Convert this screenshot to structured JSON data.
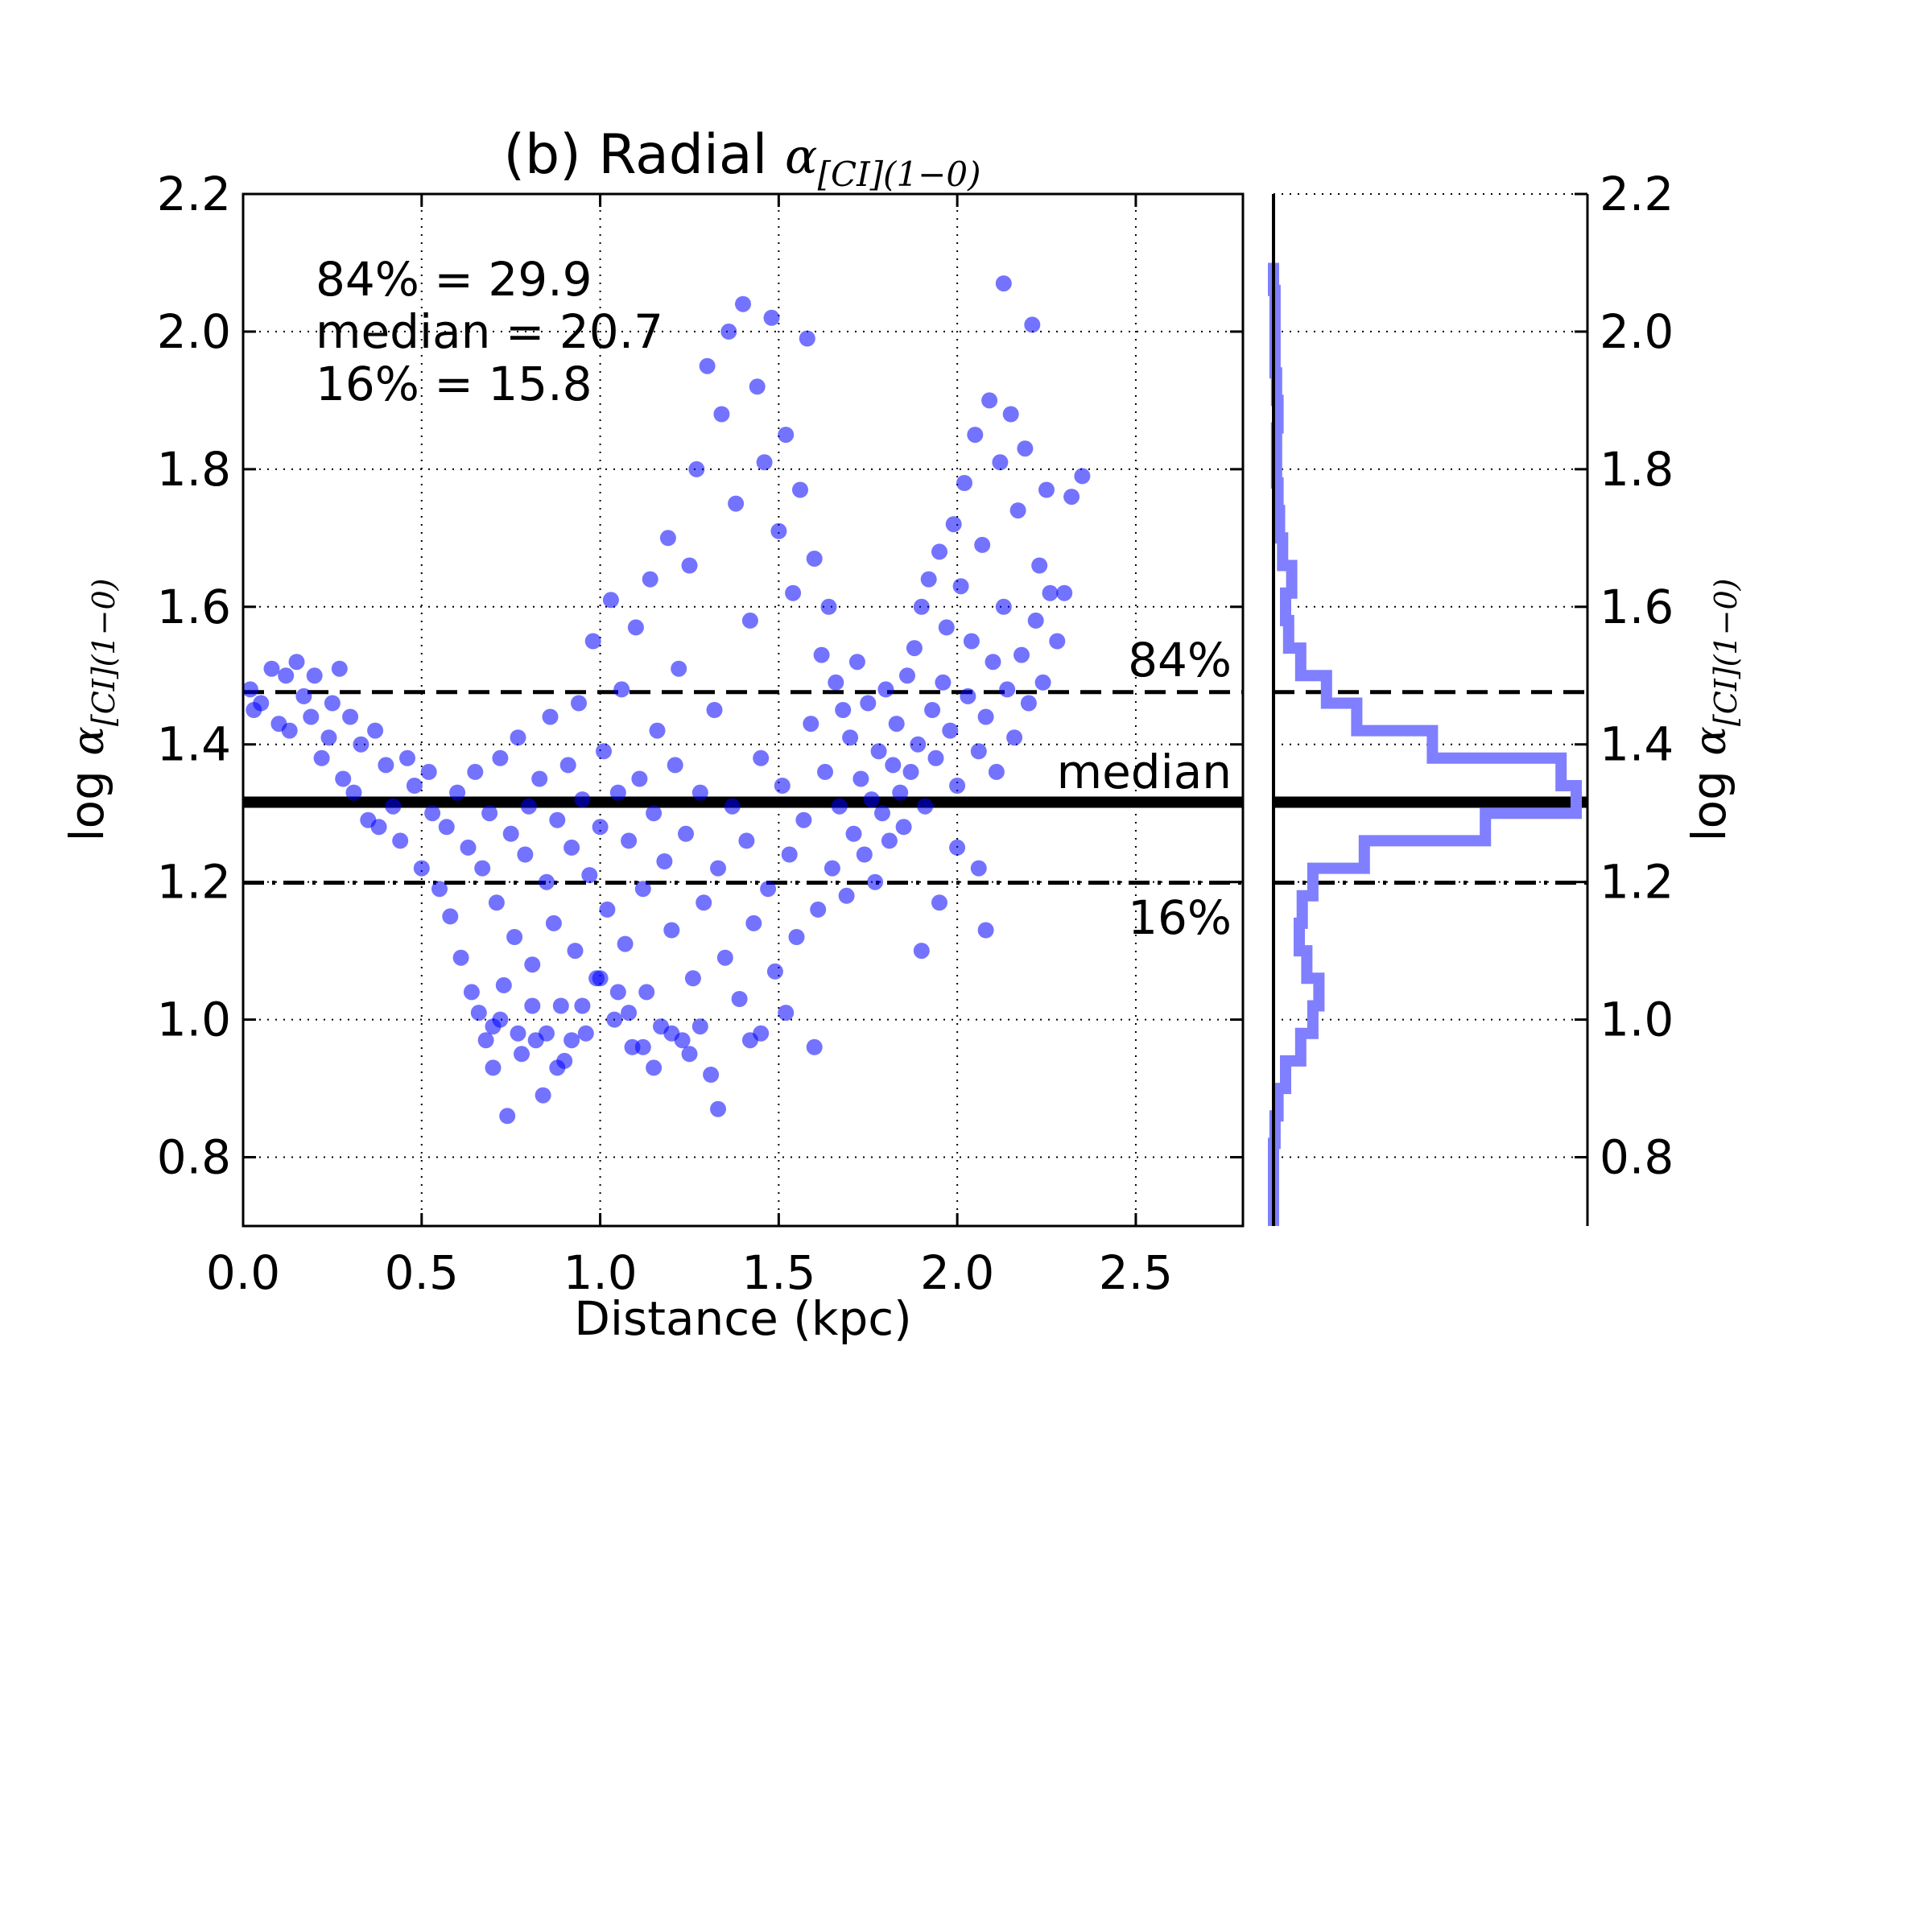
{
  "chart_data": {
    "type": "scatter",
    "title": {
      "prefix": "(b) Radial ",
      "symbol": "α",
      "subscript": "[CI](1−0)"
    },
    "xlabel": "Distance (kpc)",
    "ylabel": {
      "prefix": "log ",
      "symbol": "α",
      "subscript": "[CI](1−0)"
    },
    "xlim": [
      0.0,
      2.8
    ],
    "ylim": [
      0.7,
      2.2
    ],
    "xticks": [
      "0.0",
      "0.5",
      "1.0",
      "1.5",
      "2.0",
      "2.5"
    ],
    "yticks": [
      "0.8",
      "1.0",
      "1.2",
      "1.4",
      "1.6",
      "1.8",
      "2.0",
      "2.2"
    ],
    "grid": true,
    "marker_color": "#0000ff",
    "marker_alpha": 0.55,
    "histogram_color": "#7f7fff",
    "stats_text": [
      "84% = 29.9",
      "median = 20.7",
      "16% = 15.8"
    ],
    "reference_lines": [
      {
        "name": "84%",
        "value": 1.476,
        "style": "dashed"
      },
      {
        "name": "median",
        "value": 1.316,
        "style": "solid"
      },
      {
        "name": "16%",
        "value": 1.199,
        "style": "dashdot"
      }
    ],
    "points": [
      [
        0.02,
        1.48
      ],
      [
        0.03,
        1.45
      ],
      [
        0.05,
        1.46
      ],
      [
        0.08,
        1.51
      ],
      [
        0.1,
        1.43
      ],
      [
        0.12,
        1.5
      ],
      [
        0.13,
        1.42
      ],
      [
        0.15,
        1.52
      ],
      [
        0.17,
        1.47
      ],
      [
        0.19,
        1.44
      ],
      [
        0.2,
        1.5
      ],
      [
        0.22,
        1.38
      ],
      [
        0.24,
        1.41
      ],
      [
        0.25,
        1.46
      ],
      [
        0.27,
        1.51
      ],
      [
        0.28,
        1.35
      ],
      [
        0.3,
        1.44
      ],
      [
        0.31,
        1.33
      ],
      [
        0.33,
        1.4
      ],
      [
        0.35,
        1.29
      ],
      [
        0.37,
        1.42
      ],
      [
        0.38,
        1.28
      ],
      [
        0.4,
        1.37
      ],
      [
        0.42,
        1.31
      ],
      [
        0.44,
        1.26
      ],
      [
        0.46,
        1.38
      ],
      [
        0.48,
        1.34
      ],
      [
        0.5,
        1.22
      ],
      [
        0.52,
        1.36
      ],
      [
        0.53,
        1.3
      ],
      [
        0.55,
        1.19
      ],
      [
        0.57,
        1.28
      ],
      [
        0.58,
        1.15
      ],
      [
        0.6,
        1.33
      ],
      [
        0.61,
        1.09
      ],
      [
        0.63,
        1.25
      ],
      [
        0.64,
        1.04
      ],
      [
        0.65,
        1.36
      ],
      [
        0.66,
        1.01
      ],
      [
        0.67,
        1.22
      ],
      [
        0.68,
        0.97
      ],
      [
        0.69,
        1.3
      ],
      [
        0.7,
        0.93
      ],
      [
        0.71,
        1.17
      ],
      [
        0.72,
        1.38
      ],
      [
        0.73,
        1.05
      ],
      [
        0.74,
        0.86
      ],
      [
        0.75,
        1.27
      ],
      [
        0.76,
        1.12
      ],
      [
        0.77,
        1.41
      ],
      [
        0.78,
        0.95
      ],
      [
        0.79,
        1.24
      ],
      [
        0.8,
        1.31
      ],
      [
        0.81,
        1.08
      ],
      [
        0.82,
        0.97
      ],
      [
        0.83,
        1.35
      ],
      [
        0.84,
        0.89
      ],
      [
        0.85,
        1.2
      ],
      [
        0.86,
        1.44
      ],
      [
        0.87,
        1.14
      ],
      [
        0.88,
        1.29
      ],
      [
        0.89,
        1.02
      ],
      [
        0.9,
        0.94
      ],
      [
        0.91,
        1.37
      ],
      [
        0.92,
        1.25
      ],
      [
        0.93,
        1.1
      ],
      [
        0.94,
        1.46
      ],
      [
        0.95,
        1.32
      ],
      [
        0.96,
        0.98
      ],
      [
        0.97,
        1.21
      ],
      [
        0.98,
        1.55
      ],
      [
        0.99,
        1.06
      ],
      [
        1.0,
        1.28
      ],
      [
        1.01,
        1.39
      ],
      [
        1.02,
        1.16
      ],
      [
        1.03,
        1.61
      ],
      [
        1.04,
        1.0
      ],
      [
        1.05,
        1.33
      ],
      [
        1.06,
        1.48
      ],
      [
        1.07,
        1.11
      ],
      [
        1.08,
        1.26
      ],
      [
        1.09,
        0.96
      ],
      [
        1.1,
        1.57
      ],
      [
        1.11,
        1.35
      ],
      [
        1.12,
        1.19
      ],
      [
        1.13,
        1.04
      ],
      [
        1.14,
        1.64
      ],
      [
        1.15,
        1.3
      ],
      [
        1.16,
        1.42
      ],
      [
        1.17,
        0.99
      ],
      [
        1.18,
        1.23
      ],
      [
        1.19,
        1.7
      ],
      [
        1.2,
        1.13
      ],
      [
        1.21,
        1.37
      ],
      [
        1.22,
        1.51
      ],
      [
        1.23,
        0.97
      ],
      [
        1.24,
        1.27
      ],
      [
        1.25,
        1.66
      ],
      [
        1.26,
        1.06
      ],
      [
        1.27,
        1.8
      ],
      [
        1.28,
        1.33
      ],
      [
        1.29,
        1.17
      ],
      [
        1.3,
        1.95
      ],
      [
        1.31,
        0.92
      ],
      [
        1.32,
        1.45
      ],
      [
        1.33,
        1.22
      ],
      [
        1.34,
        1.88
      ],
      [
        1.35,
        1.09
      ],
      [
        1.36,
        2.0
      ],
      [
        1.37,
        1.31
      ],
      [
        1.38,
        1.75
      ],
      [
        1.39,
        1.03
      ],
      [
        1.4,
        2.04
      ],
      [
        1.41,
        1.26
      ],
      [
        1.42,
        1.58
      ],
      [
        1.43,
        1.14
      ],
      [
        1.44,
        1.92
      ],
      [
        1.45,
        1.38
      ],
      [
        1.46,
        1.81
      ],
      [
        1.47,
        1.19
      ],
      [
        1.48,
        2.02
      ],
      [
        1.49,
        1.07
      ],
      [
        1.5,
        1.71
      ],
      [
        1.51,
        1.34
      ],
      [
        1.52,
        1.85
      ],
      [
        1.53,
        1.24
      ],
      [
        1.54,
        1.62
      ],
      [
        1.55,
        1.12
      ],
      [
        1.56,
        1.77
      ],
      [
        1.57,
        1.29
      ],
      [
        1.58,
        1.99
      ],
      [
        1.59,
        1.43
      ],
      [
        1.6,
        1.67
      ],
      [
        1.61,
        1.16
      ],
      [
        1.62,
        1.53
      ],
      [
        1.63,
        1.36
      ],
      [
        1.64,
        1.6
      ],
      [
        1.65,
        1.22
      ],
      [
        1.66,
        1.49
      ],
      [
        1.67,
        1.31
      ],
      [
        1.68,
        1.45
      ],
      [
        1.69,
        1.18
      ],
      [
        1.7,
        1.41
      ],
      [
        1.71,
        1.27
      ],
      [
        1.72,
        1.52
      ],
      [
        1.73,
        1.35
      ],
      [
        1.74,
        1.24
      ],
      [
        1.75,
        1.46
      ],
      [
        1.76,
        1.32
      ],
      [
        1.77,
        1.2
      ],
      [
        1.78,
        1.39
      ],
      [
        1.79,
        1.3
      ],
      [
        1.8,
        1.48
      ],
      [
        1.81,
        1.26
      ],
      [
        1.82,
        1.37
      ],
      [
        1.83,
        1.43
      ],
      [
        1.84,
        1.33
      ],
      [
        1.85,
        1.28
      ],
      [
        1.86,
        1.5
      ],
      [
        1.87,
        1.36
      ],
      [
        1.88,
        1.54
      ],
      [
        1.89,
        1.4
      ],
      [
        1.9,
        1.6
      ],
      [
        1.91,
        1.31
      ],
      [
        1.92,
        1.64
      ],
      [
        1.93,
        1.45
      ],
      [
        1.94,
        1.38
      ],
      [
        1.95,
        1.68
      ],
      [
        1.96,
        1.49
      ],
      [
        1.97,
        1.57
      ],
      [
        1.98,
        1.42
      ],
      [
        1.99,
        1.72
      ],
      [
        2.0,
        1.34
      ],
      [
        2.01,
        1.63
      ],
      [
        2.02,
        1.78
      ],
      [
        2.03,
        1.47
      ],
      [
        2.04,
        1.55
      ],
      [
        2.05,
        1.85
      ],
      [
        2.06,
        1.39
      ],
      [
        2.07,
        1.69
      ],
      [
        2.08,
        1.44
      ],
      [
        2.09,
        1.9
      ],
      [
        2.1,
        1.52
      ],
      [
        2.11,
        1.36
      ],
      [
        2.12,
        1.81
      ],
      [
        2.13,
        1.6
      ],
      [
        2.14,
        1.48
      ],
      [
        2.15,
        1.88
      ],
      [
        2.16,
        1.41
      ],
      [
        2.17,
        1.74
      ],
      [
        2.18,
        1.53
      ],
      [
        2.19,
        1.83
      ],
      [
        2.2,
        1.46
      ],
      [
        2.21,
        2.01
      ],
      [
        2.22,
        1.58
      ],
      [
        2.23,
        1.66
      ],
      [
        2.24,
        1.49
      ],
      [
        2.25,
        1.77
      ],
      [
        2.26,
        1.62
      ],
      [
        2.28,
        1.55
      ],
      [
        2.3,
        1.62
      ],
      [
        2.32,
        1.76
      ],
      [
        2.35,
        1.79
      ],
      [
        2.13,
        2.07
      ],
      [
        2.06,
        1.22
      ],
      [
        2.08,
        1.13
      ],
      [
        1.9,
        1.1
      ],
      [
        1.95,
        1.17
      ],
      [
        2.0,
        1.25
      ],
      [
        1.6,
        0.96
      ],
      [
        1.52,
        1.01
      ],
      [
        1.45,
        0.98
      ],
      [
        1.42,
        0.97
      ],
      [
        1.33,
        0.87
      ],
      [
        1.28,
        0.99
      ],
      [
        1.25,
        0.95
      ],
      [
        1.2,
        0.98
      ],
      [
        1.15,
        0.93
      ],
      [
        1.12,
        0.96
      ],
      [
        1.08,
        1.01
      ],
      [
        1.05,
        1.04
      ],
      [
        1.0,
        1.06
      ],
      [
        0.95,
        1.02
      ],
      [
        0.92,
        0.97
      ],
      [
        0.88,
        0.93
      ],
      [
        0.85,
        0.98
      ],
      [
        0.81,
        1.02
      ],
      [
        0.77,
        0.98
      ],
      [
        0.72,
        1.0
      ],
      [
        0.7,
        0.99
      ]
    ],
    "histogram": {
      "bin_edges": [
        0.7,
        0.74,
        0.78,
        0.82,
        0.86,
        0.9,
        0.94,
        0.98,
        1.02,
        1.06,
        1.1,
        1.14,
        1.18,
        1.22,
        1.26,
        1.3,
        1.34,
        1.38,
        1.42,
        1.46,
        1.5,
        1.54,
        1.58,
        1.62,
        1.66,
        1.7,
        1.74,
        1.78,
        1.82,
        1.86,
        1.9,
        1.94,
        1.98,
        2.02,
        2.06,
        2.1
      ],
      "counts": [
        0,
        0,
        0,
        1,
        3,
        8,
        18,
        26,
        30,
        22,
        17,
        19,
        26,
        60,
        140,
        200,
        190,
        105,
        55,
        35,
        18,
        10,
        8,
        12,
        6,
        4,
        3,
        2,
        2,
        3,
        2,
        1,
        1,
        1,
        0
      ]
    }
  }
}
